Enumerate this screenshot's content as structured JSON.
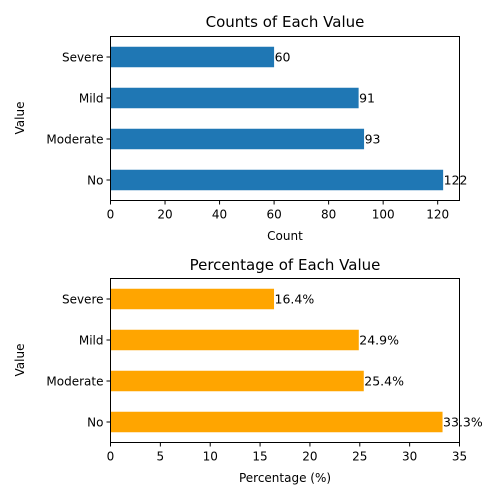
{
  "chart_data": [
    {
      "type": "bar",
      "orientation": "horizontal",
      "title": "Counts of Each Value",
      "xlabel": "Count",
      "ylabel": "Value",
      "categories": [
        "No",
        "Moderate",
        "Mild",
        "Severe"
      ],
      "values": [
        122,
        93,
        91,
        60
      ],
      "value_labels": [
        "122",
        "93",
        "91",
        "60"
      ],
      "xlim": [
        0,
        128
      ],
      "xticks": [
        0,
        20,
        40,
        60,
        80,
        100,
        120
      ],
      "color": "#1f77b4",
      "grid": false,
      "legend": false
    },
    {
      "type": "bar",
      "orientation": "horizontal",
      "title": "Percentage of Each Value",
      "xlabel": "Percentage (%)",
      "ylabel": "Value",
      "categories": [
        "No",
        "Moderate",
        "Mild",
        "Severe"
      ],
      "values": [
        33.3,
        25.4,
        24.9,
        16.4
      ],
      "value_labels": [
        "33.3%",
        "25.4%",
        "24.9%",
        "16.4%"
      ],
      "xlim": [
        0,
        35
      ],
      "xticks": [
        0,
        5,
        10,
        15,
        20,
        25,
        30,
        35
      ],
      "color": "#ffa500",
      "grid": false,
      "legend": false
    }
  ]
}
